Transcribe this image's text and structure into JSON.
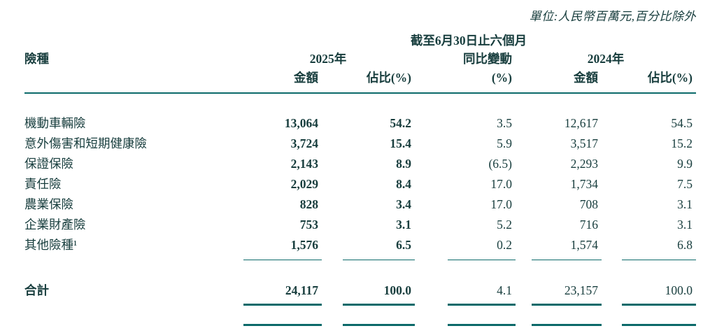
{
  "colors": {
    "text": "#173d3d",
    "line": "#0c6a6a"
  },
  "unit_note": "單位:人民幣百萬元,百分比除外",
  "table": {
    "period_header": "截至6月30日止六個月",
    "headers": {
      "type": "險種",
      "year_2025": "2025年",
      "yoy_group": "同比變動",
      "year_2024": "2024年",
      "amount_2025": "金額",
      "share_2025": "佔比(%)",
      "yoy_unit": "(%)",
      "amount_2024": "金額",
      "share_2024": "佔比(%)"
    },
    "rows": [
      {
        "label": "機動車輛險",
        "amount_2025": "13,064",
        "share_2025": "54.2",
        "yoy": "3.5",
        "amount_2024": "12,617",
        "share_2024": "54.5"
      },
      {
        "label": "意外傷害和短期健康險",
        "amount_2025": "3,724",
        "share_2025": "15.4",
        "yoy": "5.9",
        "amount_2024": "3,517",
        "share_2024": "15.2"
      },
      {
        "label": "保證保險",
        "amount_2025": "2,143",
        "share_2025": "8.9",
        "yoy": "(6.5)",
        "amount_2024": "2,293",
        "share_2024": "9.9"
      },
      {
        "label": "責任險",
        "amount_2025": "2,029",
        "share_2025": "8.4",
        "yoy": "17.0",
        "amount_2024": "1,734",
        "share_2024": "7.5"
      },
      {
        "label": "農業保險",
        "amount_2025": "828",
        "share_2025": "3.4",
        "yoy": "17.0",
        "amount_2024": "708",
        "share_2024": "3.1"
      },
      {
        "label": "企業財產險",
        "amount_2025": "753",
        "share_2025": "3.1",
        "yoy": "5.2",
        "amount_2024": "716",
        "share_2024": "3.1"
      },
      {
        "label": "其他險種¹",
        "amount_2025": "1,576",
        "share_2025": "6.5",
        "yoy": "0.2",
        "amount_2024": "1,574",
        "share_2024": "6.8"
      }
    ],
    "total": {
      "label": "合計",
      "amount_2025": "24,117",
      "share_2025": "100.0",
      "yoy": "4.1",
      "amount_2024": "23,157",
      "share_2024": "100.0"
    }
  }
}
